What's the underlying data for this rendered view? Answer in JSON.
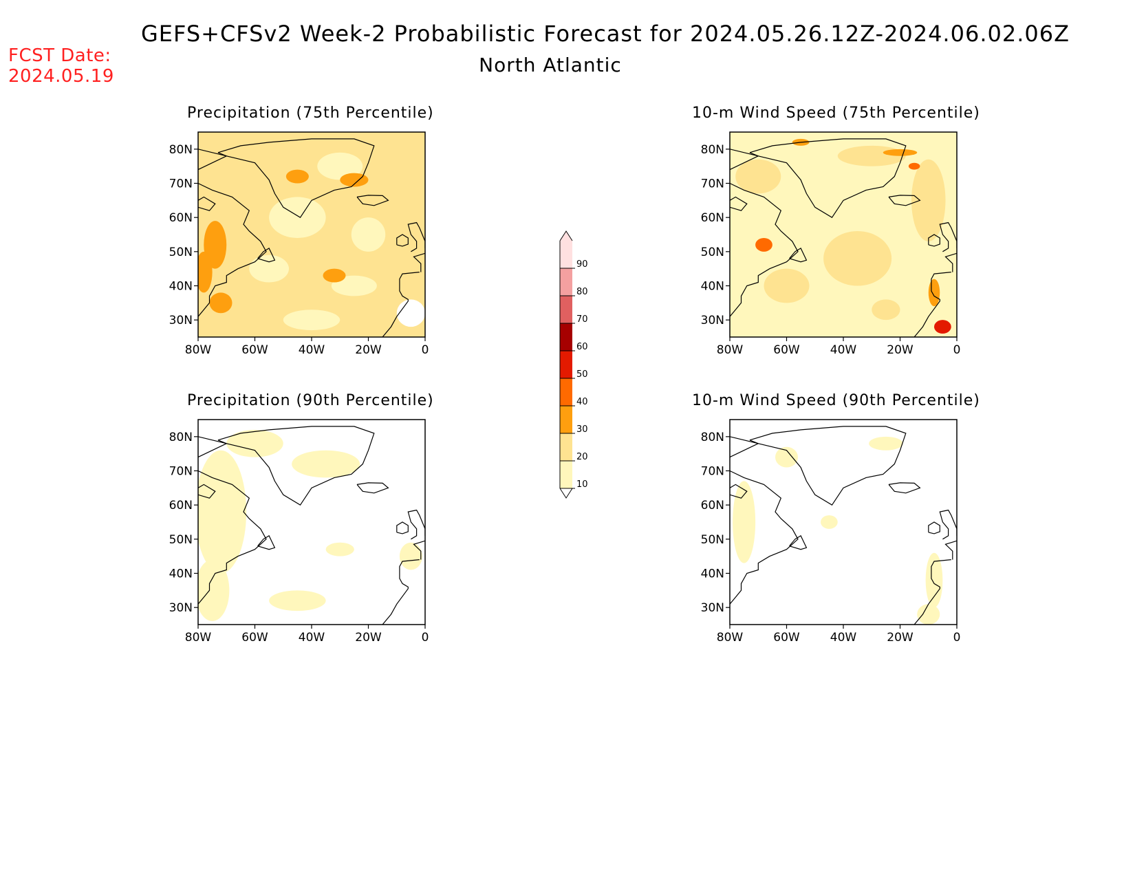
{
  "header": {
    "title": "GEFS+CFSv2 Week-2 Probabilistic Forecast for 2024.05.26.12Z-2024.06.02.06Z",
    "subtitle": "North Atlantic",
    "fcst_label": "FCST Date:",
    "fcst_date": "2024.05.19"
  },
  "panels": [
    {
      "id": "p75",
      "title": "Precipitation (75th Percentile)"
    },
    {
      "id": "p90",
      "title": "Precipitation (90th Percentile)"
    },
    {
      "id": "w75",
      "title": "10-m Wind Speed (75th Percentile)"
    },
    {
      "id": "w90",
      "title": "10-m Wind Speed (90th Percentile)"
    }
  ],
  "axes": {
    "lat_ticks": [
      "80N",
      "70N",
      "60N",
      "50N",
      "40N",
      "30N"
    ],
    "lon_ticks": [
      "80W",
      "60W",
      "40W",
      "20W",
      "0"
    ]
  },
  "colorbar": {
    "levels": [
      "10",
      "20",
      "30",
      "40",
      "50",
      "60",
      "70",
      "80",
      "90"
    ],
    "colors": [
      "#fff7bc",
      "#fee391",
      "#fe9f0f",
      "#ff6a00",
      "#e31a00",
      "#a60000",
      "#e06060",
      "#f4a0a0",
      "#ffe0e0"
    ]
  }
}
